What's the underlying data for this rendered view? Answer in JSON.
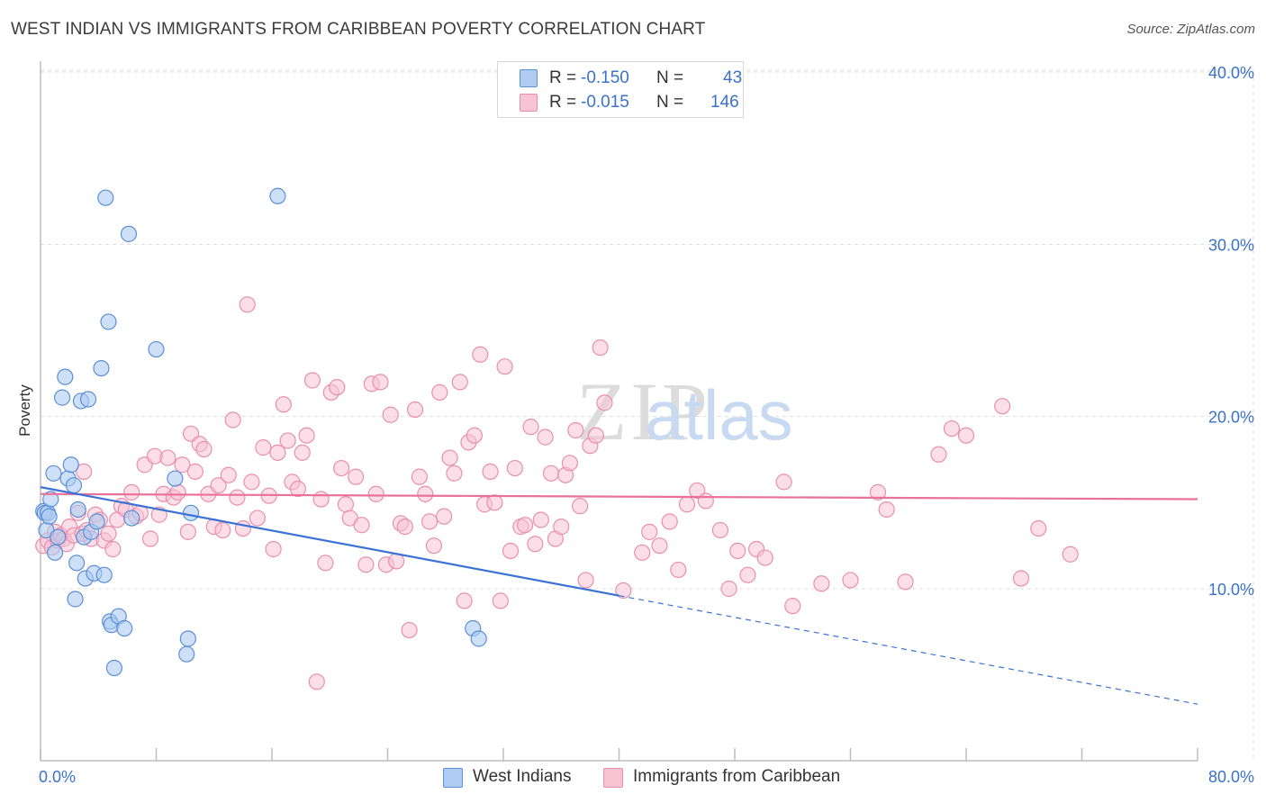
{
  "header": {
    "title": "WEST INDIAN VS IMMIGRANTS FROM CARIBBEAN POVERTY CORRELATION CHART",
    "source": "Source: ZipAtlas.com"
  },
  "watermark": {
    "zip": "ZIP",
    "atlas": "atlas"
  },
  "legend_top": {
    "rows": [
      {
        "r_label": "R =",
        "r_value": "-0.150",
        "n_label": "N =",
        "n_value": "43"
      },
      {
        "r_label": "R =",
        "r_value": "-0.015",
        "n_label": "N =",
        "n_value": "146"
      }
    ]
  },
  "legend_bottom": {
    "items": [
      {
        "label": "West Indians"
      },
      {
        "label": "Immigrants from Caribbean"
      }
    ]
  },
  "colors": {
    "series1_fill": "#aecbf2",
    "series1_stroke": "#5b8fd6",
    "series1_line": "#3a72d6",
    "series2_fill": "#f7c3d3",
    "series2_stroke": "#e98fae",
    "series2_line": "#e8729a",
    "tick_text": "#3a72c9",
    "grid": "#dddddd"
  },
  "chart_data": {
    "type": "scatter",
    "title": "WEST INDIAN VS IMMIGRANTS FROM CARIBBEAN POVERTY CORRELATION CHART",
    "xlabel": "",
    "ylabel": "Poverty",
    "xlim": [
      0,
      80
    ],
    "ylim": [
      0,
      42
    ],
    "x_tick_labels": [
      "0.0%",
      "80.0%"
    ],
    "y_ticks": [
      10,
      20,
      30,
      40
    ],
    "y_tick_labels": [
      "10.0%",
      "20.0%",
      "30.0%",
      "40.0%"
    ],
    "grid": true,
    "legend_position": "bottom",
    "series": [
      {
        "name": "West Indians",
        "r": -0.15,
        "n": 43,
        "trend": {
          "x0": 0,
          "y0": 15.9,
          "x1": 40,
          "y1": 9.6,
          "dashed_to_x": 80,
          "dashed_to_y": 3.3
        },
        "points": [
          [
            0.2,
            14.5
          ],
          [
            0.3,
            14.4
          ],
          [
            0.4,
            13.4
          ],
          [
            0.5,
            14.4
          ],
          [
            0.6,
            14.2
          ],
          [
            0.7,
            15.2
          ],
          [
            0.9,
            16.7
          ],
          [
            1.0,
            12.1
          ],
          [
            1.2,
            13.0
          ],
          [
            1.5,
            21.1
          ],
          [
            1.7,
            22.3
          ],
          [
            1.9,
            16.4
          ],
          [
            2.1,
            17.2
          ],
          [
            2.3,
            16.0
          ],
          [
            2.4,
            9.4
          ],
          [
            2.5,
            11.5
          ],
          [
            2.6,
            14.6
          ],
          [
            2.8,
            20.9
          ],
          [
            3.0,
            13.0
          ],
          [
            3.1,
            10.6
          ],
          [
            3.3,
            21.0
          ],
          [
            3.5,
            13.3
          ],
          [
            3.7,
            10.9
          ],
          [
            3.9,
            13.9
          ],
          [
            4.2,
            22.8
          ],
          [
            4.4,
            10.8
          ],
          [
            4.5,
            32.7
          ],
          [
            4.7,
            25.5
          ],
          [
            4.8,
            8.1
          ],
          [
            4.9,
            7.9
          ],
          [
            5.1,
            5.4
          ],
          [
            5.4,
            8.4
          ],
          [
            5.8,
            7.7
          ],
          [
            6.1,
            30.6
          ],
          [
            6.3,
            14.1
          ],
          [
            8.0,
            23.9
          ],
          [
            9.3,
            16.4
          ],
          [
            10.1,
            6.2
          ],
          [
            10.2,
            7.1
          ],
          [
            10.4,
            14.4
          ],
          [
            16.4,
            32.8
          ],
          [
            29.9,
            7.7
          ],
          [
            30.3,
            7.1
          ]
        ]
      },
      {
        "name": "Immigrants from Caribbean",
        "r": -0.015,
        "n": 146,
        "trend": {
          "x0": 0,
          "y0": 15.5,
          "x1": 80,
          "y1": 15.2
        },
        "points": [
          [
            0.2,
            12.5
          ],
          [
            0.5,
            12.8
          ],
          [
            0.8,
            12.4
          ],
          [
            1.0,
            13.3
          ],
          [
            1.2,
            12.8
          ],
          [
            1.4,
            13.1
          ],
          [
            1.6,
            12.9
          ],
          [
            1.8,
            12.6
          ],
          [
            2.0,
            13.6
          ],
          [
            2.3,
            13.1
          ],
          [
            2.6,
            14.4
          ],
          [
            2.9,
            13.2
          ],
          [
            3.0,
            16.8
          ],
          [
            3.2,
            13.4
          ],
          [
            3.5,
            12.9
          ],
          [
            3.8,
            14.3
          ],
          [
            4.1,
            14.0
          ],
          [
            4.4,
            12.8
          ],
          [
            4.7,
            13.2
          ],
          [
            5.0,
            12.3
          ],
          [
            5.3,
            14.0
          ],
          [
            5.6,
            14.8
          ],
          [
            5.9,
            14.6
          ],
          [
            6.3,
            15.6
          ],
          [
            6.6,
            14.2
          ],
          [
            6.9,
            14.4
          ],
          [
            7.2,
            17.2
          ],
          [
            7.6,
            12.9
          ],
          [
            7.9,
            17.7
          ],
          [
            8.2,
            14.3
          ],
          [
            8.5,
            15.5
          ],
          [
            8.8,
            17.6
          ],
          [
            9.2,
            15.3
          ],
          [
            9.5,
            15.6
          ],
          [
            9.8,
            17.2
          ],
          [
            10.2,
            13.3
          ],
          [
            10.4,
            19.0
          ],
          [
            10.7,
            16.8
          ],
          [
            11.0,
            18.4
          ],
          [
            11.3,
            18.1
          ],
          [
            11.6,
            15.5
          ],
          [
            12.0,
            13.6
          ],
          [
            12.3,
            16.0
          ],
          [
            12.6,
            13.4
          ],
          [
            13.0,
            16.6
          ],
          [
            13.3,
            19.8
          ],
          [
            13.6,
            15.3
          ],
          [
            14.0,
            13.5
          ],
          [
            14.3,
            26.5
          ],
          [
            14.6,
            16.2
          ],
          [
            15.0,
            14.1
          ],
          [
            15.4,
            18.2
          ],
          [
            15.8,
            15.4
          ],
          [
            16.1,
            12.3
          ],
          [
            16.4,
            17.9
          ],
          [
            16.8,
            20.7
          ],
          [
            17.1,
            18.6
          ],
          [
            17.4,
            16.2
          ],
          [
            17.8,
            15.8
          ],
          [
            18.1,
            17.9
          ],
          [
            18.4,
            18.9
          ],
          [
            18.8,
            22.1
          ],
          [
            19.1,
            4.6
          ],
          [
            19.4,
            15.2
          ],
          [
            19.7,
            11.5
          ],
          [
            20.1,
            21.4
          ],
          [
            20.5,
            21.7
          ],
          [
            20.8,
            17.0
          ],
          [
            21.1,
            14.9
          ],
          [
            21.4,
            14.1
          ],
          [
            21.8,
            16.5
          ],
          [
            22.2,
            13.7
          ],
          [
            22.5,
            11.4
          ],
          [
            22.9,
            21.9
          ],
          [
            23.2,
            15.5
          ],
          [
            23.5,
            22.0
          ],
          [
            23.9,
            11.4
          ],
          [
            24.2,
            20.1
          ],
          [
            24.6,
            11.6
          ],
          [
            24.9,
            13.8
          ],
          [
            25.2,
            13.6
          ],
          [
            25.5,
            7.6
          ],
          [
            25.9,
            20.4
          ],
          [
            26.2,
            16.5
          ],
          [
            26.6,
            15.5
          ],
          [
            26.9,
            13.9
          ],
          [
            27.2,
            12.5
          ],
          [
            27.6,
            21.4
          ],
          [
            27.9,
            14.2
          ],
          [
            28.3,
            17.6
          ],
          [
            28.6,
            16.7
          ],
          [
            29.0,
            22.0
          ],
          [
            29.3,
            9.3
          ],
          [
            29.6,
            18.5
          ],
          [
            30.0,
            18.9
          ],
          [
            30.4,
            23.6
          ],
          [
            30.7,
            14.9
          ],
          [
            31.1,
            16.8
          ],
          [
            31.4,
            15.0
          ],
          [
            31.8,
            9.3
          ],
          [
            32.1,
            22.9
          ],
          [
            32.5,
            12.2
          ],
          [
            32.8,
            17.0
          ],
          [
            33.2,
            13.6
          ],
          [
            33.5,
            13.7
          ],
          [
            33.9,
            19.4
          ],
          [
            34.2,
            12.6
          ],
          [
            34.6,
            14.0
          ],
          [
            34.9,
            18.8
          ],
          [
            35.3,
            16.7
          ],
          [
            35.6,
            12.9
          ],
          [
            36.0,
            13.6
          ],
          [
            36.3,
            16.6
          ],
          [
            36.6,
            17.3
          ],
          [
            37.0,
            19.2
          ],
          [
            37.3,
            14.8
          ],
          [
            37.7,
            10.5
          ],
          [
            38.0,
            18.3
          ],
          [
            38.4,
            18.9
          ],
          [
            38.7,
            24.0
          ],
          [
            39.0,
            20.8
          ],
          [
            40.3,
            9.9
          ],
          [
            41.6,
            12.1
          ],
          [
            42.1,
            13.3
          ],
          [
            42.8,
            12.5
          ],
          [
            43.5,
            13.9
          ],
          [
            44.1,
            11.1
          ],
          [
            44.7,
            14.9
          ],
          [
            45.4,
            15.7
          ],
          [
            46.0,
            15.1
          ],
          [
            47.0,
            13.4
          ],
          [
            47.6,
            10.0
          ],
          [
            48.2,
            12.2
          ],
          [
            48.9,
            10.8
          ],
          [
            49.5,
            12.3
          ],
          [
            50.1,
            11.8
          ],
          [
            51.4,
            16.2
          ],
          [
            52.0,
            9.0
          ],
          [
            54.0,
            10.3
          ],
          [
            56.0,
            10.5
          ],
          [
            57.9,
            15.6
          ],
          [
            58.5,
            14.6
          ],
          [
            59.8,
            10.4
          ],
          [
            62.1,
            17.8
          ],
          [
            63.0,
            19.3
          ],
          [
            64.0,
            18.9
          ],
          [
            66.5,
            20.6
          ],
          [
            67.8,
            10.6
          ],
          [
            69.0,
            13.5
          ],
          [
            71.2,
            12.0
          ]
        ]
      }
    ]
  }
}
